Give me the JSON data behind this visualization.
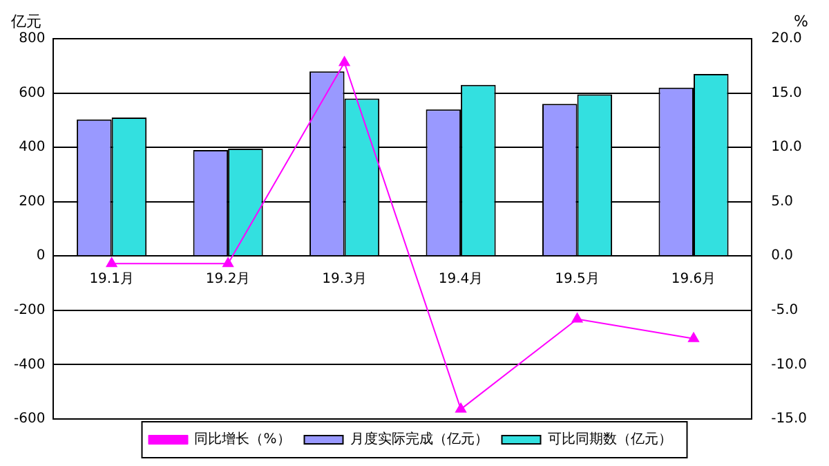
{
  "chart_data": {
    "type": "bar",
    "ylabel": "亿元",
    "y2label": "%",
    "categories": [
      "19.1月",
      "19.2月",
      "19.3月",
      "19.4月",
      "19.5月",
      "19.6月"
    ],
    "series": [
      {
        "name": "月度实际完成（亿元）",
        "color": "#9999ff",
        "values": [
          503,
          390,
          680,
          540,
          560,
          620
        ]
      },
      {
        "name": "可比同期数（亿元）",
        "color": "#33e0e0",
        "values": [
          510,
          395,
          580,
          630,
          595,
          670
        ]
      },
      {
        "name": "同比增长（%）",
        "type": "line",
        "axis": "y2",
        "color": "#ff00ff",
        "marker": "triangle",
        "values": [
          -0.7,
          -0.7,
          17.8,
          -14.1,
          -5.8,
          -7.6
        ]
      }
    ],
    "ylim": [
      -600,
      800
    ],
    "yticks": [
      -600,
      -400,
      -200,
      0,
      200,
      400,
      600,
      800
    ],
    "y2lim": [
      -15,
      20
    ],
    "y2ticks": [
      {
        "value": -15,
        "label": "-15.0"
      },
      {
        "value": -10,
        "label": "-10.0"
      },
      {
        "value": -5,
        "label": "-5.0"
      },
      {
        "value": 0,
        "label": "0.0"
      },
      {
        "value": 5,
        "label": "5.0"
      },
      {
        "value": 10,
        "label": "10.0"
      },
      {
        "value": 15,
        "label": "15.0"
      },
      {
        "value": 20,
        "label": "20.0"
      }
    ],
    "grid": "y",
    "legend": "bottom"
  }
}
